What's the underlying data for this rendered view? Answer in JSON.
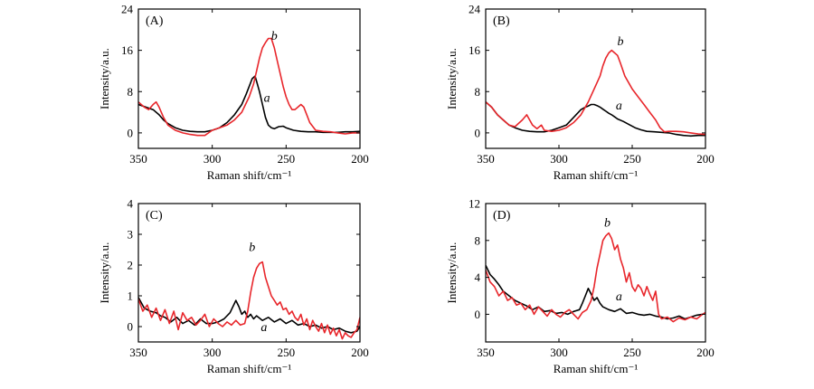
{
  "chart_data": [
    {
      "type": "line",
      "panel_label": "(A)",
      "xlabel": "Raman shift/cm⁻¹",
      "ylabel": "Intensity/a.u.",
      "xlim": [
        350,
        200
      ],
      "ylim": [
        -3,
        24
      ],
      "xticks": [
        "350",
        "300",
        "250",
        "200"
      ],
      "yticks": [
        "0",
        "8",
        "16",
        "24"
      ],
      "series": [
        {
          "name": "a",
          "color": "#000000",
          "label_at": [
            263,
            6
          ],
          "x": [
            350,
            345,
            340,
            336,
            333,
            330,
            325,
            320,
            315,
            310,
            305,
            300,
            295,
            290,
            285,
            280,
            277,
            275,
            273,
            271,
            270,
            268,
            266,
            264,
            262,
            260,
            258,
            255,
            252,
            250,
            245,
            240,
            235,
            230,
            225,
            220,
            215,
            210,
            205,
            200
          ],
          "y": [
            5.5,
            5,
            4.5,
            3.5,
            2.5,
            1.8,
            1,
            0.5,
            0.3,
            0.2,
            0.2,
            0.5,
            1,
            2,
            3.5,
            5.5,
            7.5,
            9,
            10.5,
            11,
            10,
            8,
            5.5,
            3,
            1.5,
            1,
            0.8,
            1.2,
            1.3,
            1,
            0.5,
            0.3,
            0.2,
            0.2,
            0.1,
            0.1,
            0.1,
            0.2,
            0.2,
            0.3
          ]
        },
        {
          "name": "b",
          "color": "#e8262b",
          "label_at": [
            258,
            18
          ],
          "x": [
            350,
            346,
            343,
            340,
            338,
            336,
            333,
            330,
            325,
            320,
            315,
            310,
            305,
            300,
            295,
            290,
            285,
            280,
            275,
            272,
            270,
            268,
            266,
            264,
            262,
            260,
            258,
            256,
            254,
            252,
            250,
            248,
            246,
            244,
            242,
            240,
            238,
            236,
            234,
            230,
            225,
            220,
            215,
            210,
            205,
            200
          ],
          "y": [
            6,
            5,
            4.5,
            5.5,
            6,
            5,
            3,
            1.5,
            0.5,
            0,
            -0.3,
            -0.5,
            -0.5,
            0.5,
            1,
            1.5,
            2.5,
            4,
            7,
            9.5,
            12,
            14.5,
            16.5,
            17.5,
            18.3,
            18.3,
            16.5,
            14,
            11.5,
            9,
            7,
            5.5,
            4.5,
            4.5,
            5,
            5.5,
            5,
            3.5,
            2,
            0.5,
            0.3,
            0.2,
            0,
            -0.2,
            0,
            0
          ]
        }
      ]
    },
    {
      "type": "line",
      "panel_label": "(B)",
      "xlabel": "Raman shift/cm⁻¹",
      "ylabel": "Intensity/a.u.",
      "xlim": [
        350,
        200
      ],
      "ylim": [
        -3,
        24
      ],
      "xticks": [
        "350",
        "300",
        "250",
        "200"
      ],
      "yticks": [
        "0",
        "8",
        "16",
        "24"
      ],
      "series": [
        {
          "name": "a",
          "color": "#000000",
          "label_at": [
            259,
            4.5
          ],
          "x": [
            350,
            346,
            342,
            338,
            334,
            330,
            325,
            320,
            315,
            310,
            305,
            300,
            295,
            290,
            285,
            282,
            280,
            278,
            276,
            274,
            272,
            270,
            268,
            266,
            264,
            262,
            260,
            256,
            252,
            248,
            244,
            240,
            235,
            230,
            225,
            220,
            215,
            210,
            205,
            200
          ],
          "y": [
            6,
            5,
            3.5,
            2.5,
            1.5,
            1,
            0.5,
            0.3,
            0.2,
            0.2,
            0.5,
            1,
            1.5,
            3,
            4.5,
            5,
            5.2,
            5.5,
            5.5,
            5.3,
            5,
            4.6,
            4.2,
            3.8,
            3.5,
            3.1,
            2.7,
            2.2,
            1.6,
            1,
            0.6,
            0.3,
            0.2,
            0.1,
            0,
            -0.3,
            -0.5,
            -0.6,
            -0.5,
            -0.5
          ]
        },
        {
          "name": "b",
          "color": "#e8262b",
          "label_at": [
            258,
            17
          ],
          "x": [
            350,
            346,
            342,
            338,
            334,
            330,
            325,
            322,
            318,
            315,
            312,
            310,
            305,
            300,
            295,
            290,
            285,
            280,
            276,
            272,
            270,
            268,
            266,
            264,
            262,
            260,
            258,
            255,
            252,
            250,
            246,
            242,
            238,
            234,
            231,
            228,
            225,
            220,
            215,
            210,
            205,
            200
          ],
          "y": [
            6,
            5,
            3.5,
            2.5,
            1.5,
            1.2,
            2.5,
            3.5,
            1.5,
            0.8,
            1.5,
            0.5,
            0.3,
            0.5,
            1,
            2,
            3.5,
            6,
            8.5,
            11,
            13,
            14.5,
            15.5,
            16,
            15.5,
            15,
            13.5,
            11,
            9.5,
            8.5,
            7,
            5.5,
            4,
            2.5,
            1,
            0.2,
            0.3,
            0.3,
            0.2,
            0,
            -0.2,
            -0.3
          ]
        }
      ]
    },
    {
      "type": "line",
      "panel_label": "(C)",
      "xlabel": "Raman shift/cm⁻¹",
      "ylabel": "Intensity/a.u.",
      "xlim": [
        350,
        200
      ],
      "ylim": [
        -0.5,
        4
      ],
      "xticks": [
        "350",
        "300",
        "250",
        "200"
      ],
      "yticks": [
        "0",
        "1",
        "2",
        "3",
        "4"
      ],
      "series": [
        {
          "name": "a",
          "color": "#000000",
          "label_at": [
            265,
            -0.15
          ],
          "x": [
            350,
            346,
            342,
            338,
            335,
            332,
            328,
            324,
            320,
            316,
            312,
            308,
            304,
            300,
            296,
            292,
            288,
            284,
            282,
            280,
            278,
            276,
            274,
            272,
            270,
            266,
            262,
            258,
            254,
            250,
            246,
            242,
            238,
            234,
            230,
            226,
            222,
            218,
            214,
            210,
            206,
            202,
            200
          ],
          "y": [
            0.95,
            0.6,
            0.5,
            0.45,
            0.35,
            0.3,
            0.15,
            0.3,
            0.1,
            0.2,
            0.05,
            0.25,
            0.1,
            0.1,
            0.15,
            0.25,
            0.45,
            0.85,
            0.65,
            0.4,
            0.5,
            0.3,
            0.4,
            0.25,
            0.35,
            0.2,
            0.3,
            0.15,
            0.25,
            0.1,
            0.2,
            0.05,
            0.1,
            0.0,
            0.05,
            -0.05,
            0.0,
            -0.1,
            -0.05,
            -0.15,
            -0.2,
            -0.15,
            0.0
          ]
        },
        {
          "name": "b",
          "color": "#e8262b",
          "label_at": [
            273,
            2.45
          ],
          "x": [
            350,
            347,
            344,
            341,
            338,
            335,
            332,
            329,
            326,
            323,
            320,
            317,
            314,
            311,
            308,
            305,
            302,
            299,
            296,
            293,
            290,
            287,
            284,
            281,
            278,
            276,
            274,
            272,
            270,
            268,
            266,
            264,
            262,
            260,
            258,
            256,
            254,
            252,
            250,
            248,
            246,
            244,
            242,
            240,
            238,
            236,
            234,
            232,
            230,
            228,
            226,
            224,
            222,
            220,
            218,
            216,
            214,
            212,
            210,
            208,
            206,
            204,
            202,
            200
          ],
          "y": [
            0.9,
            0.5,
            0.7,
            0.3,
            0.6,
            0.2,
            0.55,
            0.1,
            0.5,
            -0.1,
            0.45,
            0.2,
            0.3,
            0.05,
            0.2,
            0.4,
            0.0,
            0.25,
            0.1,
            0.0,
            0.15,
            0.05,
            0.2,
            0.05,
            0.1,
            0.5,
            1.1,
            1.6,
            1.9,
            2.05,
            2.1,
            1.6,
            1.3,
            1.0,
            0.85,
            0.7,
            0.8,
            0.55,
            0.6,
            0.4,
            0.5,
            0.3,
            0.2,
            0.4,
            0.05,
            0.25,
            -0.1,
            0.2,
            0.0,
            -0.15,
            0.1,
            -0.2,
            0.05,
            -0.25,
            -0.05,
            -0.3,
            -0.1,
            -0.4,
            -0.2,
            -0.3,
            -0.35,
            -0.2,
            -0.1,
            0.3
          ]
        }
      ]
    },
    {
      "type": "line",
      "panel_label": "(D)",
      "xlabel": "Raman shift/cm⁻¹",
      "ylabel": "Intensity/a.u.",
      "xlim": [
        350,
        200
      ],
      "ylim": [
        -3,
        12
      ],
      "xticks": [
        "350",
        "300",
        "250",
        "200"
      ],
      "yticks": [
        "0",
        "4",
        "8",
        "12"
      ],
      "series": [
        {
          "name": "a",
          "color": "#000000",
          "label_at": [
            259,
            1.5
          ],
          "x": [
            350,
            347,
            344,
            341,
            338,
            334,
            330,
            326,
            322,
            318,
            314,
            310,
            306,
            302,
            298,
            294,
            290,
            286,
            284,
            282,
            280,
            278,
            276,
            274,
            272,
            270,
            266,
            262,
            258,
            254,
            250,
            246,
            242,
            238,
            234,
            230,
            226,
            222,
            218,
            214,
            210,
            206,
            202,
            200
          ],
          "y": [
            5.3,
            4.3,
            3.8,
            3.2,
            2.5,
            2.0,
            1.5,
            1.2,
            0.9,
            0.5,
            0.8,
            0.3,
            0.4,
            0.1,
            0.2,
            0.0,
            0.3,
            0.5,
            1.2,
            2.0,
            2.8,
            2.2,
            1.5,
            1.8,
            1.2,
            0.8,
            0.5,
            0.3,
            0.6,
            0.1,
            0.2,
            0.0,
            -0.1,
            0.0,
            -0.2,
            -0.3,
            -0.5,
            -0.4,
            -0.2,
            -0.5,
            -0.3,
            -0.1,
            0.0,
            0.1
          ]
        },
        {
          "name": "b",
          "color": "#e8262b",
          "label_at": [
            267,
            9.5
          ],
          "x": [
            350,
            347,
            344,
            341,
            338,
            335,
            332,
            329,
            326,
            323,
            320,
            317,
            314,
            311,
            308,
            305,
            302,
            299,
            296,
            293,
            290,
            287,
            284,
            281,
            278,
            276,
            274,
            272,
            270,
            268,
            266,
            264,
            262,
            260,
            258,
            256,
            254,
            252,
            250,
            248,
            246,
            244,
            242,
            240,
            238,
            236,
            234,
            232,
            230,
            226,
            222,
            218,
            214,
            210,
            206,
            202,
            200
          ],
          "y": [
            4.8,
            3.5,
            3.0,
            2.0,
            2.5,
            1.5,
            1.8,
            1.0,
            1.2,
            0.5,
            1.0,
            0.0,
            0.8,
            0.3,
            -0.2,
            0.5,
            0.0,
            -0.3,
            0.2,
            0.5,
            0.0,
            -0.5,
            0.2,
            0.5,
            1.5,
            3.0,
            5.0,
            6.5,
            8.0,
            8.5,
            8.8,
            8.2,
            7.0,
            7.5,
            6.0,
            5.0,
            3.5,
            4.5,
            3.0,
            2.5,
            3.2,
            2.8,
            2.0,
            3.0,
            2.2,
            1.5,
            2.5,
            0.0,
            -0.5,
            -0.3,
            -0.8,
            -0.4,
            -0.6,
            -0.3,
            -0.5,
            0.0,
            0.2
          ]
        }
      ]
    }
  ]
}
